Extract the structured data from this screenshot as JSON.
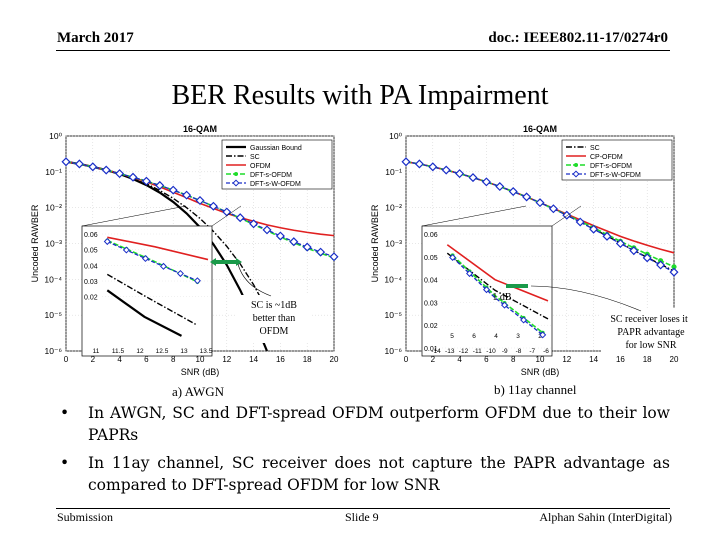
{
  "header": {
    "date": "March 2017",
    "doc_id": "doc.: IEEE802.11-17/0274r0"
  },
  "slide_title": "BER Results with PA Impairment",
  "colors": {
    "sc": "#000000",
    "cpofdm": "#e02020",
    "dftsofdm": "#1fdc2a",
    "dftswofdm": "#1a2ec8",
    "gaussian": "#000000"
  },
  "chart_data": [
    {
      "type": "line",
      "title": "16-QAM",
      "xlabel": "SNR (dB)",
      "ylabel": "Uncoded RAWBER",
      "xlim": [
        0,
        20
      ],
      "ylim_log10": [
        -6,
        0
      ],
      "xticks": [
        "0",
        "2",
        "4",
        "6",
        "8",
        "10",
        "12",
        "14",
        "16",
        "18",
        "20"
      ],
      "yticks": [
        "10⁰",
        "10⁻¹",
        "10⁻²",
        "10⁻³",
        "10⁻⁴",
        "10⁻⁵",
        "10⁻⁶"
      ],
      "legend": [
        "Gaussian Bound",
        "SC",
        "OFDM",
        "DFT-s-OFDM",
        "DFT-s-W-OFDM"
      ],
      "legend_position": "top-right",
      "x": [
        0,
        1,
        2,
        3,
        4,
        5,
        6,
        7,
        8,
        9,
        10,
        11,
        12,
        13,
        14,
        15,
        16,
        17,
        18,
        19,
        20
      ],
      "series": [
        {
          "name": "Gaussian Bound",
          "style": "solid-black",
          "logber": [
            -0.72,
            -0.78,
            -0.86,
            -0.95,
            -1.06,
            -1.2,
            -1.37,
            -1.58,
            -1.84,
            -2.16,
            -2.55,
            -3.02,
            -3.6,
            -4.3,
            -5.1,
            -6.0,
            null,
            null,
            null,
            null,
            null
          ]
        },
        {
          "name": "SC",
          "style": "dashdot-black",
          "logber": [
            -0.72,
            -0.78,
            -0.86,
            -0.95,
            -1.05,
            -1.18,
            -1.33,
            -1.52,
            -1.74,
            -2.0,
            -2.3,
            -2.66,
            -3.08,
            -3.57,
            -4.15,
            -4.85,
            -5.7,
            null,
            null,
            null,
            null
          ]
        },
        {
          "name": "OFDM",
          "style": "solid-red",
          "logber": [
            -0.72,
            -0.78,
            -0.86,
            -0.95,
            -1.05,
            -1.16,
            -1.28,
            -1.42,
            -1.57,
            -1.72,
            -1.88,
            -2.02,
            -2.16,
            -2.28,
            -2.38,
            -2.48,
            -2.56,
            -2.63,
            -2.69,
            -2.74,
            -2.78
          ]
        },
        {
          "name": "DFT-s-OFDM",
          "style": "green-dash-dot-markers",
          "logber": [
            -0.72,
            -0.78,
            -0.86,
            -0.95,
            -1.05,
            -1.15,
            -1.26,
            -1.38,
            -1.51,
            -1.65,
            -1.8,
            -1.96,
            -2.12,
            -2.29,
            -2.47,
            -2.64,
            -2.82,
            -2.98,
            -3.13,
            -3.27,
            -3.4
          ]
        },
        {
          "name": "DFT-s-W-OFDM",
          "style": "blue-dash-diamonds",
          "logber": [
            -0.72,
            -0.78,
            -0.86,
            -0.95,
            -1.05,
            -1.15,
            -1.26,
            -1.38,
            -1.51,
            -1.65,
            -1.8,
            -1.96,
            -2.12,
            -2.28,
            -2.45,
            -2.62,
            -2.79,
            -2.95,
            -3.1,
            -3.24,
            -3.37
          ]
        }
      ],
      "annotation": "SC is ~1dB better than OFDM",
      "inset": {
        "xticks": [
          "11",
          "11.5",
          "12",
          "12.5",
          "13",
          "13.5"
        ],
        "yticks": [
          "0.06",
          "0.05",
          "0.04",
          "0.03",
          "0.02"
        ]
      },
      "caption": "a) AWGN"
    },
    {
      "type": "line",
      "title": "16-QAM",
      "xlabel": "SNR (dB)",
      "ylabel": "Uncoded RAWBER",
      "xlim": [
        0,
        20
      ],
      "ylim_log10": [
        -6,
        0
      ],
      "xticks": [
        "0",
        "2",
        "4",
        "6",
        "8",
        "10",
        "12",
        "14",
        "16",
        "18",
        "20"
      ],
      "yticks": [
        "10⁰",
        "10⁻¹",
        "10⁻²",
        "10⁻³",
        "10⁻⁴",
        "10⁻⁵",
        "10⁻⁶"
      ],
      "legend": [
        "SC",
        "CP-OFDM",
        "DFT-s-OFDM",
        "DFT-s-W-OFDM"
      ],
      "legend_position": "top-right",
      "x": [
        0,
        1,
        2,
        3,
        4,
        5,
        6,
        7,
        8,
        9,
        10,
        11,
        12,
        13,
        14,
        15,
        16,
        17,
        18,
        19,
        20
      ],
      "series": [
        {
          "name": "SC",
          "style": "dashdot-black",
          "logber": [
            -0.72,
            -0.78,
            -0.86,
            -0.95,
            -1.05,
            -1.16,
            -1.28,
            -1.41,
            -1.55,
            -1.7,
            -1.86,
            -2.03,
            -2.21,
            -2.4,
            -2.59,
            -2.79,
            -2.99,
            -3.19,
            -3.39,
            -3.58,
            -3.77
          ]
        },
        {
          "name": "CP-OFDM",
          "style": "solid-red",
          "logber": [
            -0.72,
            -0.78,
            -0.86,
            -0.95,
            -1.05,
            -1.16,
            -1.28,
            -1.41,
            -1.55,
            -1.7,
            -1.86,
            -2.02,
            -2.18,
            -2.34,
            -2.5,
            -2.65,
            -2.8,
            -2.93,
            -3.05,
            -3.16,
            -3.26
          ]
        },
        {
          "name": "DFT-s-OFDM",
          "style": "green-dash-dot-markers",
          "logber": [
            -0.72,
            -0.78,
            -0.86,
            -0.95,
            -1.05,
            -1.16,
            -1.28,
            -1.41,
            -1.55,
            -1.7,
            -1.86,
            -2.03,
            -2.2,
            -2.38,
            -2.56,
            -2.75,
            -2.94,
            -3.12,
            -3.3,
            -3.48,
            -3.65
          ]
        },
        {
          "name": "DFT-s-W-OFDM",
          "style": "blue-dash-diamonds",
          "logber": [
            -0.72,
            -0.78,
            -0.86,
            -0.95,
            -1.05,
            -1.16,
            -1.28,
            -1.41,
            -1.55,
            -1.7,
            -1.86,
            -2.03,
            -2.21,
            -2.4,
            -2.6,
            -2.8,
            -3.0,
            -3.2,
            -3.4,
            -3.6,
            -3.8
          ]
        }
      ],
      "annotation_1db": "1 dB",
      "annotation": "SC receiver loses its PAPR advantage for low SNR",
      "inset": {
        "xticks": [
          "-14",
          "-13",
          "-12",
          "-11",
          "-10",
          "-9",
          "-8",
          "-7",
          "-6"
        ],
        "xticks_low": [
          "5",
          "6",
          "4",
          "3",
          "2"
        ],
        "yticks": [
          "0.06",
          "0.05",
          "0.04",
          "0.03",
          "0.02",
          "0.01"
        ]
      },
      "caption": "b) 11ay channel"
    }
  ],
  "bullets": [
    "In AWGN, SC and DFT-spread OFDM outperform OFDM due to their low PAPRs",
    "In 11ay channel, SC receiver does not capture the PAPR advantage as compared to DFT-spread OFDM for low SNR"
  ],
  "footer": {
    "left": "Submission",
    "center": "Slide 9",
    "right": "Alphan Sahin (InterDigital)"
  }
}
